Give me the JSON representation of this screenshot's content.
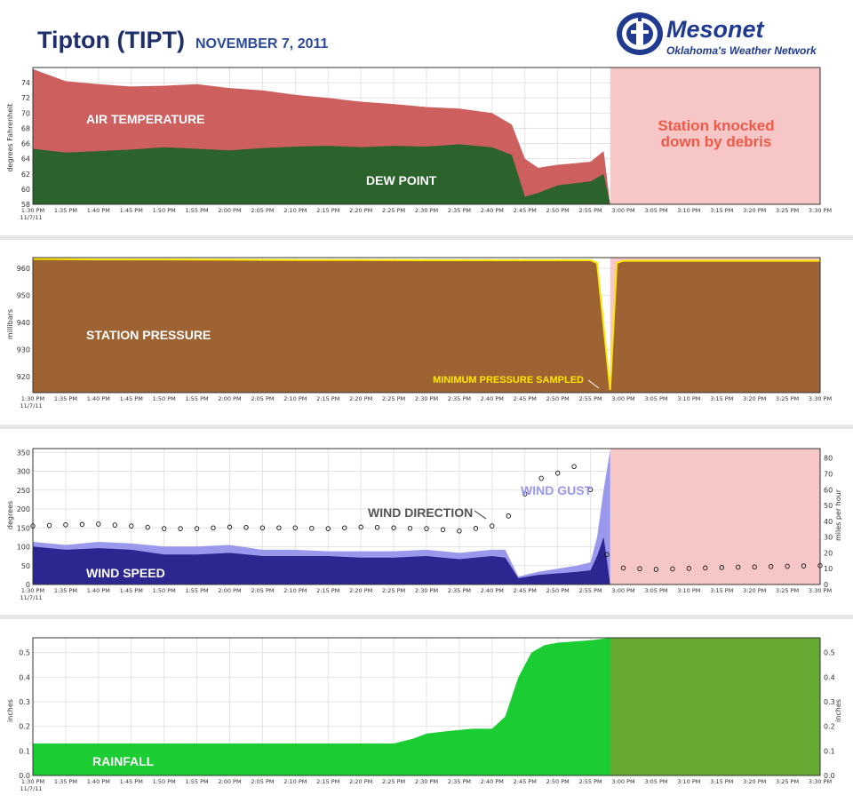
{
  "header": {
    "title": "Tipton (TIPT)",
    "date": "NOVEMBER 7, 2011"
  },
  "logo": {
    "name": "Mesonet",
    "subtitle": "Oklahoma's Weather Network"
  },
  "colors": {
    "air_temperature": "#cd5f5f",
    "dew_point": "#2c632c",
    "station_pressure": "#9e6333",
    "pressure_line": "#ffe600",
    "wind_gust": "#9a98ec",
    "wind_speed": "#2c2790",
    "rainfall": "#1ccc33",
    "outage_shade": "#f7c6c6",
    "annotation_red": "#ee5a4a"
  },
  "chart_data": [
    {
      "type": "area",
      "panel": "temperature",
      "ylabel": "degrees Fahrenheit",
      "x": [
        "1:30 PM",
        "1:35 PM",
        "1:40 PM",
        "1:45 PM",
        "1:50 PM",
        "1:55 PM",
        "2:00 PM",
        "2:05 PM",
        "2:10 PM",
        "2:15 PM",
        "2:20 PM",
        "2:25 PM",
        "2:30 PM",
        "2:35 PM",
        "2:40 PM",
        "2:43 PM",
        "2:45 PM",
        "2:47 PM",
        "2:50 PM",
        "2:55 PM",
        "2:57 PM",
        "2:58 PM"
      ],
      "xticks": [
        "1:30 PM",
        "1:35 PM",
        "1:40 PM",
        "1:45 PM",
        "1:50 PM",
        "1:55 PM",
        "2:00 PM",
        "2:05 PM",
        "2:10 PM",
        "2:15 PM",
        "2:20 PM",
        "2:25 PM",
        "2:30 PM",
        "2:35 PM",
        "2:40 PM",
        "2:45 PM",
        "2:50 PM",
        "2:55 PM",
        "3:00 PM",
        "3:05 PM",
        "3:10 PM",
        "3:15 PM",
        "3:20 PM",
        "3:25 PM",
        "3:30 PM"
      ],
      "xtick_date": "11/7/11",
      "ylim": [
        58,
        76
      ],
      "yticks": [
        58,
        60,
        62,
        64,
        66,
        68,
        70,
        72,
        74
      ],
      "series": [
        {
          "name": "AIR TEMPERATURE",
          "values": [
            75.8,
            74.2,
            73.8,
            73.5,
            73.6,
            73.8,
            73.3,
            73.0,
            72.4,
            72.0,
            71.5,
            71.2,
            70.8,
            70.6,
            70.0,
            68.5,
            64.0,
            62.8,
            63.2,
            63.6,
            65.0,
            58.0
          ]
        },
        {
          "name": "DEW POINT",
          "values": [
            65.3,
            64.8,
            65.0,
            65.2,
            65.5,
            65.3,
            65.1,
            65.4,
            65.6,
            65.7,
            65.5,
            65.7,
            65.6,
            65.9,
            65.5,
            64.5,
            59.0,
            59.5,
            60.5,
            61.0,
            62.0,
            58.0
          ]
        }
      ],
      "annotation": "Station knocked down by debris",
      "outage_start": "2:58 PM"
    },
    {
      "type": "area",
      "panel": "pressure",
      "ylabel": "millibars",
      "x": [
        "1:30 PM",
        "1:40 PM",
        "1:50 PM",
        "2:00 PM",
        "2:10 PM",
        "2:20 PM",
        "2:30 PM",
        "2:40 PM",
        "2:50 PM",
        "2:55 PM",
        "2:56 PM",
        "2:58 PM",
        "2:59 PM",
        "3:00 PM",
        "3:10 PM",
        "3:20 PM",
        "3:30 PM"
      ],
      "ylim": [
        914,
        964
      ],
      "yticks": [
        920,
        930,
        940,
        950,
        960
      ],
      "series": [
        {
          "name": "STATION PRESSURE",
          "values": [
            963.5,
            963.3,
            963.3,
            963.2,
            963.1,
            963.1,
            963.0,
            963.0,
            963.0,
            963.0,
            962.0,
            915.0,
            962.0,
            962.8,
            962.8,
            962.8,
            962.8
          ]
        }
      ],
      "annotation": "MINIMUM PRESSURE SAMPLED"
    },
    {
      "type": "area",
      "panel": "wind",
      "ylabel": "degrees",
      "y2label": "miles per hour",
      "ylim": [
        0,
        360
      ],
      "yticks": [
        0,
        50,
        100,
        150,
        200,
        250,
        300,
        350
      ],
      "y2lim": [
        0,
        86
      ],
      "y2ticks": [
        0,
        10,
        20,
        30,
        40,
        50,
        60,
        70,
        80
      ],
      "x": [
        "1:30 PM",
        "1:35 PM",
        "1:40 PM",
        "1:45 PM",
        "1:50 PM",
        "1:55 PM",
        "2:00 PM",
        "2:05 PM",
        "2:10 PM",
        "2:15 PM",
        "2:20 PM",
        "2:25 PM",
        "2:30 PM",
        "2:35 PM",
        "2:40 PM",
        "2:42 PM",
        "2:44 PM",
        "2:47 PM",
        "2:50 PM",
        "2:53 PM",
        "2:55 PM",
        "2:56 PM",
        "2:57 PM",
        "2:58 PM"
      ],
      "series": [
        {
          "name": "WIND GUST",
          "values": [
            27,
            25,
            27,
            26,
            24,
            24,
            25,
            22,
            22,
            21,
            21,
            21,
            22,
            20,
            22,
            22,
            5,
            8,
            10,
            12,
            14,
            30,
            60,
            85
          ]
        },
        {
          "name": "WIND SPEED",
          "values": [
            24,
            22,
            23,
            22,
            19,
            19,
            20,
            18,
            18,
            18,
            17,
            17,
            18,
            16,
            18,
            17,
            4,
            6,
            7,
            8,
            9,
            18,
            30,
            0
          ]
        }
      ],
      "direction_series": {
        "name": "WIND DIRECTION",
        "times": [
          "1:30 PM",
          "1:35 PM",
          "1:40 PM",
          "1:45 PM",
          "1:50 PM",
          "1:55 PM",
          "2:00 PM",
          "2:05 PM",
          "2:10 PM",
          "2:15 PM",
          "2:20 PM",
          "2:25 PM",
          "2:30 PM",
          "2:35 PM",
          "2:40 PM",
          "2:42 PM",
          "2:44 PM",
          "2:46 PM",
          "2:48 PM",
          "2:50 PM",
          "2:52 PM",
          "2:54 PM",
          "2:58 PM",
          "3:05 PM",
          "3:15 PM",
          "3:30 PM"
        ],
        "values": [
          155,
          158,
          160,
          155,
          148,
          148,
          152,
          150,
          150,
          148,
          152,
          150,
          148,
          142,
          155,
          172,
          210,
          270,
          285,
          295,
          310,
          320,
          45,
          40,
          45,
          50
        ]
      },
      "labels": [
        "WIND DIRECTION",
        "WIND GUST",
        "WIND SPEED"
      ]
    },
    {
      "type": "area",
      "panel": "rainfall",
      "ylabel": "inches",
      "y2label": "inches",
      "ylim": [
        0,
        0.56
      ],
      "yticks": [
        0.0,
        0.1,
        0.2,
        0.3,
        0.4,
        0.5
      ],
      "x": [
        "1:30 PM",
        "2:25 PM",
        "2:28 PM",
        "2:30 PM",
        "2:33 PM",
        "2:37 PM",
        "2:40 PM",
        "2:42 PM",
        "2:44 PM",
        "2:46 PM",
        "2:48 PM",
        "2:50 PM",
        "2:55 PM",
        "2:58 PM",
        "3:30 PM"
      ],
      "series": [
        {
          "name": "RAINFALL",
          "values": [
            0.13,
            0.13,
            0.15,
            0.17,
            0.18,
            0.19,
            0.19,
            0.24,
            0.4,
            0.5,
            0.53,
            0.54,
            0.55,
            0.56,
            0.56
          ]
        }
      ]
    }
  ]
}
